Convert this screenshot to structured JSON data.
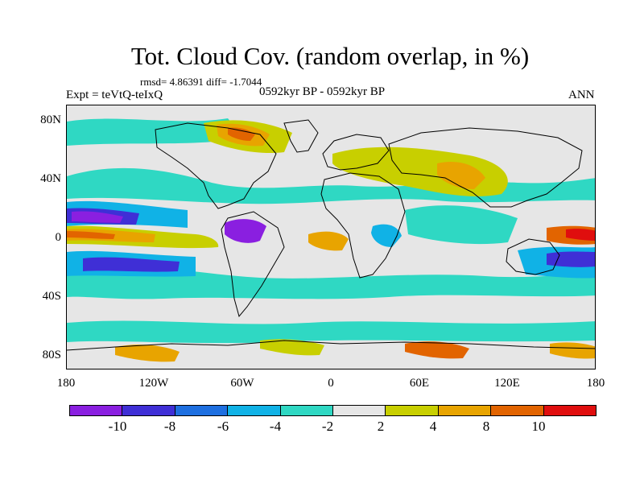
{
  "title": "Tot. Cloud Cov. (random overlap, in %)",
  "stats": "rmsd= 4.86391 diff= -1.7044",
  "experiment": "Expt = teVtQ-teIxQ",
  "period": "0592kyr BP - 0592kyr BP",
  "season": "ANN",
  "lat_ticks": [
    "80N",
    "40N",
    "0",
    "40S",
    "80S"
  ],
  "lon_ticks": [
    "180",
    "120W",
    "60W",
    "0",
    "60E",
    "120E",
    "180"
  ],
  "colorbar": {
    "colors": [
      "#8a1fe0",
      "#3f2fd6",
      "#1e6fe0",
      "#10b2e6",
      "#2fd8c3",
      "#e6e6e6",
      "#c8cf00",
      "#e8a400",
      "#e26400",
      "#e00e0e"
    ],
    "labels": [
      "-10",
      "-8",
      "-6",
      "-4",
      "-2",
      "2",
      "4",
      "8",
      "10"
    ]
  }
}
